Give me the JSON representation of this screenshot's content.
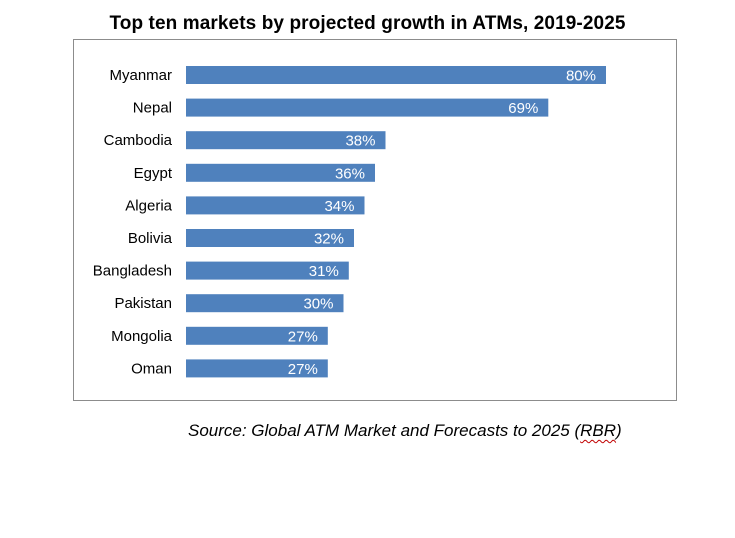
{
  "chart_data": {
    "type": "bar",
    "orientation": "horizontal",
    "title": "Top ten markets by projected growth in ATMs, 2019-2025",
    "categories": [
      "Myanmar",
      "Nepal",
      "Cambodia",
      "Egypt",
      "Algeria",
      "Bolivia",
      "Bangladesh",
      "Pakistan",
      "Mongolia",
      "Oman"
    ],
    "values": [
      80,
      69,
      38,
      36,
      34,
      32,
      31,
      30,
      27,
      27
    ],
    "value_labels": [
      "80%",
      "69%",
      "38%",
      "36%",
      "34%",
      "32%",
      "31%",
      "30%",
      "27%",
      "27%"
    ],
    "unit": "%",
    "xlabel": "",
    "ylabel": "",
    "xlim": [
      0,
      80
    ],
    "grid": false,
    "legend": "none",
    "bar_color": "#4f81bd",
    "label_color": "#ffffff"
  },
  "source": {
    "text_before": "Source: Global ATM Market and Forecasts to 2025 (",
    "abbr": "RBR",
    "text_after": ")"
  }
}
